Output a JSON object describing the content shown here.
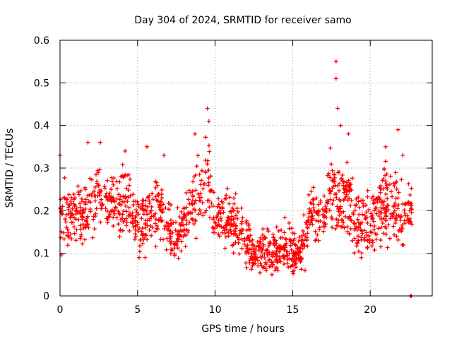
{
  "chart_data": {
    "type": "scatter",
    "title": "Day 304 of 2024, SRMTID for receiver samo",
    "xlabel": "GPS time / hours",
    "ylabel": "SRMTID / TECUs",
    "xlim": [
      0,
      24
    ],
    "ylim": [
      0,
      0.6
    ],
    "x_ticks": [
      0,
      5,
      10,
      15,
      20
    ],
    "x_tick_labels": [
      "0",
      "5",
      "10",
      "15",
      "20"
    ],
    "y_ticks": [
      0,
      0.1,
      0.2,
      0.3,
      0.4,
      0.5,
      0.6
    ],
    "y_tick_labels": [
      "0",
      "0.1",
      "0.2",
      "0.3",
      "0.4",
      "0.5",
      "0.6"
    ],
    "grid": true,
    "marker": "plus",
    "series_color": "#ff0000",
    "envelope_hours": [
      0,
      0.5,
      1,
      1.5,
      2,
      2.5,
      3,
      3.5,
      4,
      4.5,
      5,
      5.5,
      6,
      6.5,
      7,
      7.5,
      8,
      8.5,
      9,
      9.5,
      10,
      10.5,
      11,
      11.5,
      12,
      12.5,
      13,
      13.5,
      14,
      14.5,
      15,
      15.5,
      16,
      16.5,
      17,
      17.5,
      18,
      18.5,
      19,
      19.5,
      20,
      20.5,
      21,
      21.5,
      22,
      22.5
    ],
    "envelope_center": [
      0.19,
      0.2,
      0.19,
      0.18,
      0.22,
      0.25,
      0.22,
      0.2,
      0.22,
      0.21,
      0.17,
      0.18,
      0.2,
      0.21,
      0.15,
      0.14,
      0.16,
      0.22,
      0.25,
      0.28,
      0.19,
      0.18,
      0.17,
      0.17,
      0.13,
      0.1,
      0.11,
      0.1,
      0.11,
      0.12,
      0.1,
      0.1,
      0.17,
      0.19,
      0.19,
      0.24,
      0.22,
      0.24,
      0.17,
      0.16,
      0.18,
      0.2,
      0.22,
      0.21,
      0.18,
      0.21
    ],
    "envelope_spread": [
      0.06,
      0.05,
      0.05,
      0.05,
      0.06,
      0.06,
      0.05,
      0.05,
      0.06,
      0.05,
      0.05,
      0.06,
      0.06,
      0.06,
      0.05,
      0.04,
      0.05,
      0.06,
      0.07,
      0.08,
      0.05,
      0.05,
      0.05,
      0.05,
      0.04,
      0.03,
      0.04,
      0.04,
      0.04,
      0.04,
      0.04,
      0.03,
      0.05,
      0.05,
      0.05,
      0.07,
      0.06,
      0.06,
      0.05,
      0.05,
      0.05,
      0.06,
      0.07,
      0.06,
      0.06,
      0.05
    ],
    "n_points": 1400,
    "notable_points": [
      {
        "x": 0.0,
        "y": 0.33
      },
      {
        "x": 1.8,
        "y": 0.36
      },
      {
        "x": 2.6,
        "y": 0.36
      },
      {
        "x": 4.2,
        "y": 0.34
      },
      {
        "x": 5.6,
        "y": 0.35
      },
      {
        "x": 6.7,
        "y": 0.33
      },
      {
        "x": 8.7,
        "y": 0.38
      },
      {
        "x": 9.5,
        "y": 0.44
      },
      {
        "x": 9.6,
        "y": 0.41
      },
      {
        "x": 17.8,
        "y": 0.55
      },
      {
        "x": 17.8,
        "y": 0.51
      },
      {
        "x": 17.9,
        "y": 0.44
      },
      {
        "x": 18.1,
        "y": 0.4
      },
      {
        "x": 18.6,
        "y": 0.38
      },
      {
        "x": 21.0,
        "y": 0.35
      },
      {
        "x": 21.8,
        "y": 0.39
      },
      {
        "x": 22.1,
        "y": 0.33
      },
      {
        "x": 12.4,
        "y": 0.07
      },
      {
        "x": 13.3,
        "y": 0.06
      },
      {
        "x": 15.8,
        "y": 0.06
      },
      {
        "x": 5.1,
        "y": 0.09
      },
      {
        "x": 22.6,
        "y": 0.0
      },
      {
        "x": 22.65,
        "y": 0.0
      }
    ]
  }
}
